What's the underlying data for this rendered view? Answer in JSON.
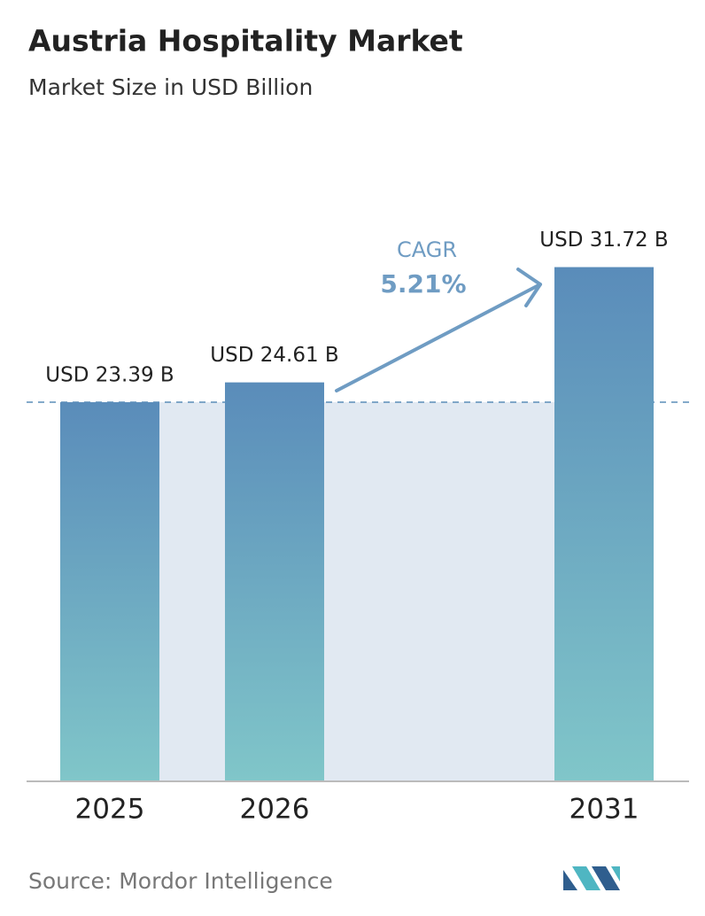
{
  "chart_data": {
    "type": "bar",
    "title": "Austria Hospitality Market",
    "subtitle": "Market Size in USD Billion",
    "categories": [
      "2025",
      "2026",
      "2031"
    ],
    "values": [
      23.39,
      24.61,
      31.72
    ],
    "value_labels": [
      "USD 23.39 B",
      "USD 24.61 B",
      "USD 31.72 B"
    ],
    "colors": [
      "#5a8cba",
      "#80c6c9"
    ],
    "annotation": {
      "label": "CAGR",
      "value": "5.21%"
    },
    "source": "Source: Mordor Intelligence"
  }
}
